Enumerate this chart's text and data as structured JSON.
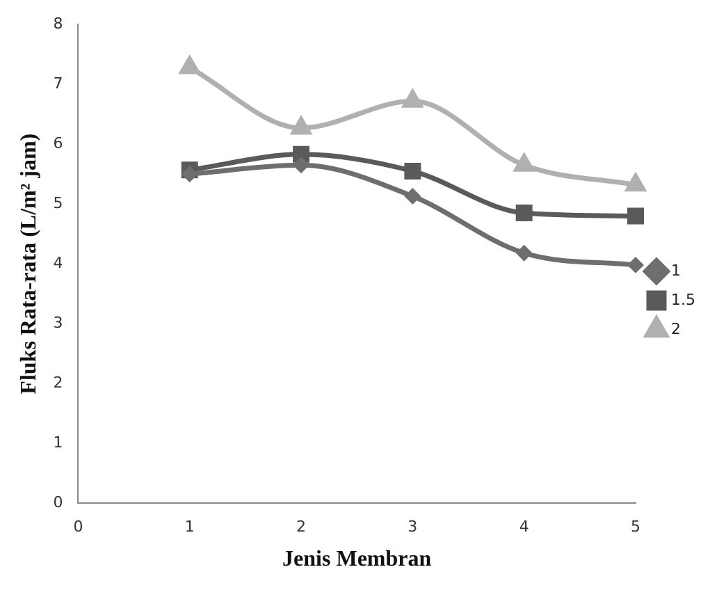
{
  "chart_data": {
    "type": "line",
    "xlabel": "Jenis Membran",
    "ylabel": "Fluks Rata-rata (L/m² jam)",
    "x": [
      1,
      2,
      3,
      4,
      5
    ],
    "xlim": [
      0,
      5
    ],
    "xticks": [
      0,
      1,
      2,
      3,
      4,
      5
    ],
    "ylim": [
      0,
      8
    ],
    "yticks": [
      0,
      1,
      2,
      3,
      4,
      5,
      6,
      7,
      8
    ],
    "grid": false,
    "legend": "right",
    "series": [
      {
        "name": "1",
        "color": "#6e6e6e",
        "marker": "diamond",
        "values": [
          5.5,
          5.65,
          5.13,
          4.18,
          3.98
        ]
      },
      {
        "name": "1.5",
        "color": "#5a5a5a",
        "marker": "square",
        "values": [
          5.57,
          5.83,
          5.55,
          4.85,
          4.8
        ]
      },
      {
        "name": "2",
        "color": "#b0b0b0",
        "marker": "triangle",
        "values": [
          7.28,
          6.27,
          6.72,
          5.65,
          5.32
        ]
      }
    ]
  }
}
